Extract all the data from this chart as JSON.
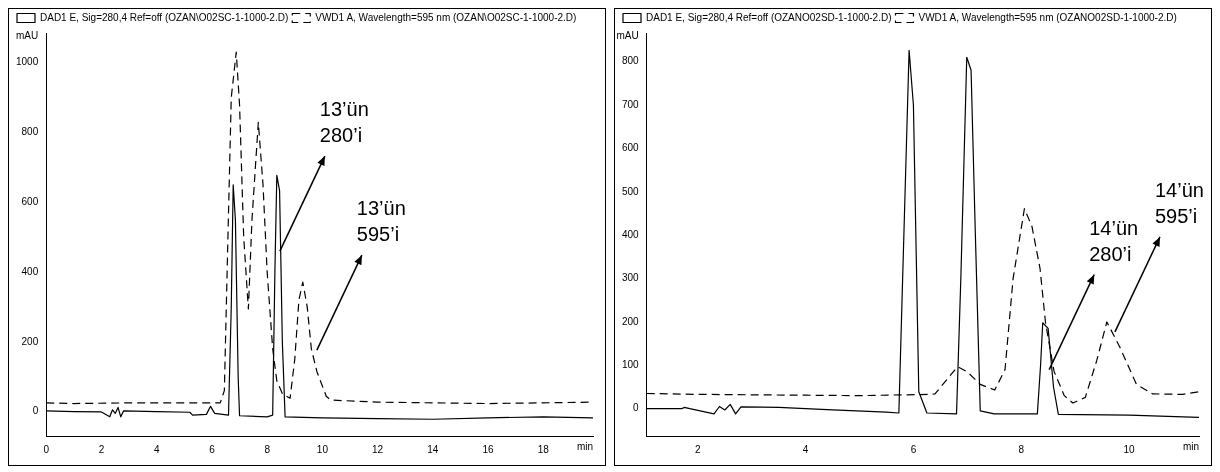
{
  "chart_data": [
    {
      "type": "line",
      "xlabel": "min",
      "ylabel": "mAU",
      "xlim": [
        0,
        19.8
      ],
      "ylim": [
        -70,
        1085
      ],
      "xticks": [
        0,
        2,
        4,
        6,
        8,
        10,
        12,
        14,
        16,
        18
      ],
      "yticks": [
        0,
        200,
        400,
        600,
        800,
        1000
      ],
      "grid": false,
      "legend": "top left",
      "marker": "none",
      "series": [
        {
          "name": "DAD1 E, Sig=280,4 Ref=off (OZAN\\O02SC-1-1000-2.D)",
          "color": "#000000",
          "line_style": "solid",
          "x": [
            0,
            1,
            2,
            2.3,
            2.4,
            2.5,
            2.6,
            2.7,
            2.8,
            4,
            5.2,
            5.3,
            5.8,
            5.95,
            6.1,
            6.6,
            6.7,
            6.77,
            6.85,
            6.95,
            7.0,
            8.0,
            8.2,
            8.28,
            8.35,
            8.45,
            8.55,
            8.65,
            10,
            12,
            14,
            16,
            18,
            19.8
          ],
          "values": [
            2,
            0,
            -1,
            -15,
            5,
            -5,
            12,
            -15,
            2,
            0,
            -2,
            -10,
            -8,
            15,
            -5,
            -10,
            300,
            650,
            550,
            100,
            -12,
            -15,
            -10,
            400,
            677,
            633,
            200,
            -15,
            -18,
            -20,
            -22,
            -18,
            -15,
            -18
          ]
        },
        {
          "name": "VWD1 A, Wavelength=595 nm (OZAN\\O02SC-1-1000-2.D)",
          "color": "#000000",
          "line_style": "dashed",
          "x": [
            0,
            1,
            3,
            5,
            6.3,
            6.45,
            6.55,
            6.7,
            6.88,
            7.0,
            7.15,
            7.32,
            7.45,
            7.68,
            7.85,
            8.0,
            8.2,
            8.35,
            8.56,
            8.83,
            9.0,
            9.15,
            9.29,
            9.45,
            9.6,
            9.8,
            10.14,
            10.3,
            12,
            14,
            16,
            18,
            19.8
          ],
          "values": [
            25,
            23,
            25,
            25,
            25,
            60,
            400,
            900,
            1030,
            880,
            500,
            294,
            550,
            829,
            650,
            400,
            180,
            88,
            50,
            38,
            150,
            320,
            371,
            300,
            180,
            115,
            44,
            33,
            27,
            25,
            23,
            25,
            27
          ]
        }
      ],
      "annotations": [
        {
          "text": "13’ün\n280’i",
          "x": 8.46,
          "y": 460
        },
        {
          "text": "13’ün\n595’i",
          "x": 9.8,
          "y": 176
        }
      ]
    },
    {
      "type": "line",
      "xlabel": "min",
      "ylabel": "mAU",
      "xlim": [
        1.05,
        11.3
      ],
      "ylim": [
        -63,
        866
      ],
      "xticks": [
        2,
        4,
        6,
        8,
        10
      ],
      "yticks": [
        0,
        100,
        200,
        300,
        400,
        500,
        600,
        700,
        800
      ],
      "grid": false,
      "legend": "top left",
      "marker": "none",
      "series": [
        {
          "name": "DAD1 E, Sig=280,4 Ref=off (OZANO02SD-1-1000-2.D)",
          "color": "#000000",
          "line_style": "solid",
          "x": [
            1.05,
            1.7,
            1.75,
            1.85,
            2.3,
            2.4,
            2.5,
            2.6,
            2.7,
            2.8,
            3.5,
            4.5,
            5.5,
            5.73,
            5.8,
            5.92,
            6.0,
            6.1,
            6.25,
            6.8,
            6.88,
            6.99,
            7.07,
            7.15,
            7.24,
            7.5,
            8.3,
            8.36,
            8.4,
            8.5,
            8.6,
            8.69,
            10,
            11.3
          ],
          "values": [
            0,
            0,
            3,
            0,
            -12,
            5,
            -3,
            10,
            -12,
            4,
            3,
            -3,
            -8,
            -10,
            300,
            826,
            700,
            39,
            -10,
            -12,
            300,
            810,
            780,
            400,
            -5,
            -12,
            -12,
            100,
            198,
            185,
            50,
            -13,
            -15,
            -20
          ]
        },
        {
          "name": "VWD1 A, Wavelength=595 nm (OZANO02SD-1-1000-2.D)",
          "color": "#000000",
          "line_style": "dashed",
          "x": [
            1.05,
            2,
            3,
            4,
            5,
            6.3,
            6.4,
            6.82,
            7.0,
            7.24,
            7.51,
            7.7,
            7.85,
            8.06,
            8.2,
            8.35,
            8.45,
            8.61,
            8.8,
            8.96,
            9.19,
            9.4,
            9.59,
            9.83,
            10.14,
            10.44,
            11,
            11.3
          ],
          "values": [
            35,
            33,
            32,
            31,
            30,
            33,
            34,
            97,
            85,
            56,
            43,
            90,
            300,
            461,
            420,
            323,
            200,
            86,
            30,
            13,
            26,
            110,
            200,
            142,
            56,
            34,
            33,
            39
          ]
        }
      ],
      "annotations": [
        {
          "text": "14’ün\n280’i",
          "x": 8.52,
          "y": 90
        },
        {
          "text": "14’ün\n595’i",
          "x": 9.74,
          "y": 177
        }
      ]
    }
  ]
}
